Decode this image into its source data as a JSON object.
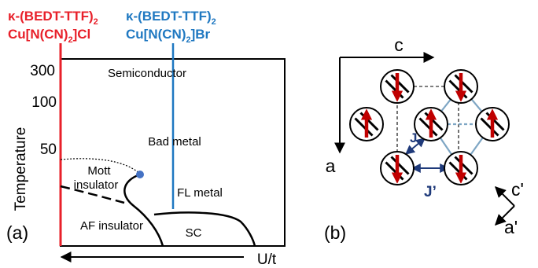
{
  "panel_a": {
    "label": "(a)",
    "compound_cl": {
      "line1": "κ-(BEDT-TTF)",
      "sub1": "2",
      "line2": "Cu[N(CN)",
      "sub2": "2",
      "line2_end": "]Cl"
    },
    "compound_br": {
      "line1": "κ-(BEDT-TTF)",
      "sub1": "2",
      "line2": "Cu[N(CN)",
      "sub2": "2",
      "line2_end": "]Br"
    },
    "y_axis_title": "Temperature",
    "y_ticks": [
      "300",
      "100",
      "50"
    ],
    "x_axis_title": "U/t",
    "regions": {
      "semiconductor": "Semiconductor",
      "bad_metal": "Bad metal",
      "mott_line1": "Mott",
      "mott_line2": "insulator",
      "fl_metal": "FL metal",
      "af_insulator": "AF insulator",
      "sc": "SC"
    }
  },
  "panel_b": {
    "label": "(b)",
    "axis_c": "c",
    "axis_a": "a",
    "axis_c_prime": "c'",
    "axis_a_prime": "a'",
    "coupling_j": "J",
    "coupling_j_prime": "J’"
  },
  "colors": {
    "cl_red": "#e8202a",
    "br_blue": "#1f78c1",
    "spin_red": "#c00000",
    "lattice_blue": "#7ea6c4",
    "coupling_navy": "#1f3a7a",
    "marker_blue": "#4472c4",
    "ink": "#000000"
  }
}
